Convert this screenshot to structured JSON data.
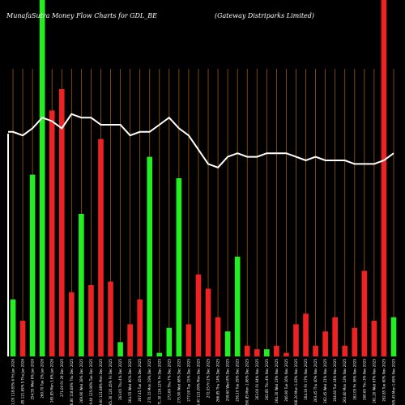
{
  "chart_data": {
    "type": "bar",
    "title": "MunafaSutra  Money Flow  Charts for GDL_BE",
    "title_right": "(Gateway Distriparks Limited)",
    "colors": {
      "background": "#000000",
      "up": "#22ee22",
      "down": "#ee2222",
      "line": "#ffffff",
      "grid": "#a05a0a",
      "text": "#ffffff"
    },
    "ylim": [
      0,
      100
    ],
    "bars": [
      {
        "label": "271.05 118.83% 6 Fri Jan 2026",
        "value": 16,
        "color": "up"
      },
      {
        "label": "271.85 121.69% 5 Thu Jan 2026",
        "value": 10,
        "color": "down"
      },
      {
        "label": "254.55 Wed 6% Jan 2026",
        "value": 51,
        "color": "up"
      },
      {
        "label": "260.70 Tue 2% Jan 2026",
        "value": 100,
        "color": "up"
      },
      {
        "label": "265.85 Mon 3.6% Jan 2026",
        "value": 69,
        "color": "down"
      },
      {
        "label": "271.00 Fri 29 Dec 2025",
        "value": 75,
        "color": "down"
      },
      {
        "label": "266.80 118.68% Thu Dec 2025",
        "value": 18,
        "color": "down"
      },
      {
        "label": "269.90 Wed 28% Dec 2025",
        "value": 40,
        "color": "up"
      },
      {
        "label": "269.40 125.06% Tue Dec 2025",
        "value": 20,
        "color": "down"
      },
      {
        "label": "269.60 121.68% Mon Dec 2025",
        "value": 61,
        "color": "down"
      },
      {
        "label": "265.30 120.45% Fri Dec 2025",
        "value": 21,
        "color": "down"
      },
      {
        "label": "263.05 Thu 4% Dec 2025",
        "value": 4,
        "color": "up"
      },
      {
        "label": "264.55 Wed 80% Dec 2025",
        "value": 9,
        "color": "down"
      },
      {
        "label": "267.45 Tue 45% Dec 2025",
        "value": 16,
        "color": "down"
      },
      {
        "label": "270.15 Mon 19% Dec 2025",
        "value": 56,
        "color": "up"
      },
      {
        "label": "271.30 124.12% Fri Dec 2025",
        "value": 1,
        "color": "up"
      },
      {
        "label": "272.60 Thu 7% Dec 2025",
        "value": 8,
        "color": "up"
      },
      {
        "label": "275.90 Wed 68% Dec 2025",
        "value": 50,
        "color": "up"
      },
      {
        "label": "277.00 Tue 15% Dec 2025",
        "value": 9,
        "color": "down"
      },
      {
        "label": "276.40 121.00% Mon Dec 2025",
        "value": 23,
        "color": "down"
      },
      {
        "label": "272.05 Fri 2% Dec 2025",
        "value": 19,
        "color": "down"
      },
      {
        "label": "266.85 Thu 14% Dec 2025",
        "value": 11,
        "color": "down"
      },
      {
        "label": "259.60 Wed 8% Dec 2025",
        "value": 7,
        "color": "up"
      },
      {
        "label": "256.10 Tue 29% Dec 2025",
        "value": 28,
        "color": "up"
      },
      {
        "label": "260.85 Mon 1.06% Dec 2025",
        "value": 3,
        "color": "down"
      },
      {
        "label": "263.00 Fri 64% Nov 2025",
        "value": 2,
        "color": "down"
      },
      {
        "label": "262.85 Thu 4% Nov 2025",
        "value": 2,
        "color": "up"
      },
      {
        "label": "264.30 Wed 23% Nov 2025",
        "value": 3,
        "color": "down"
      },
      {
        "label": "266.90 Tue 16% Nov 2025",
        "value": 1,
        "color": "down"
      },
      {
        "label": "266.20 Mon 1.03% Nov 2025",
        "value": 9,
        "color": "down"
      },
      {
        "label": "264.30 Fri 17% Nov 2025",
        "value": 12,
        "color": "down"
      },
      {
        "label": "263.45 Thu 40% Nov 2025",
        "value": 3,
        "color": "down"
      },
      {
        "label": "262.45 Wed 21% Nov 2025",
        "value": 7,
        "color": "down"
      },
      {
        "label": "264.60 Tue 24% Nov 2025",
        "value": 11,
        "color": "down"
      },
      {
        "label": "263.60 Mon 13% Nov 2025",
        "value": 3,
        "color": "down"
      },
      {
        "label": "262.05 Fri 36% Nov 2025",
        "value": 8,
        "color": "down"
      },
      {
        "label": "260.65 Thu 3% Nov 2025",
        "value": 24,
        "color": "down"
      },
      {
        "label": "261.20 Wed 67% Nov 2025",
        "value": 10,
        "color": "down"
      },
      {
        "label": "262.85 Tue 60% Nov 2025",
        "value": 100,
        "color": "down"
      },
      {
        "label": "265.45 Mon 1.65% Nov 2025",
        "value": 11,
        "color": "up"
      }
    ],
    "line_values": [
      63,
      62,
      64,
      67,
      66,
      64,
      68,
      67,
      67,
      65,
      65,
      65,
      62,
      63,
      63,
      65,
      67,
      64,
      62,
      58,
      54,
      53,
      56,
      57,
      56,
      56,
      57,
      57,
      57,
      56,
      55,
      56,
      55,
      55,
      55,
      54,
      54,
      54,
      55,
      57
    ],
    "left_bar_shown": true
  }
}
